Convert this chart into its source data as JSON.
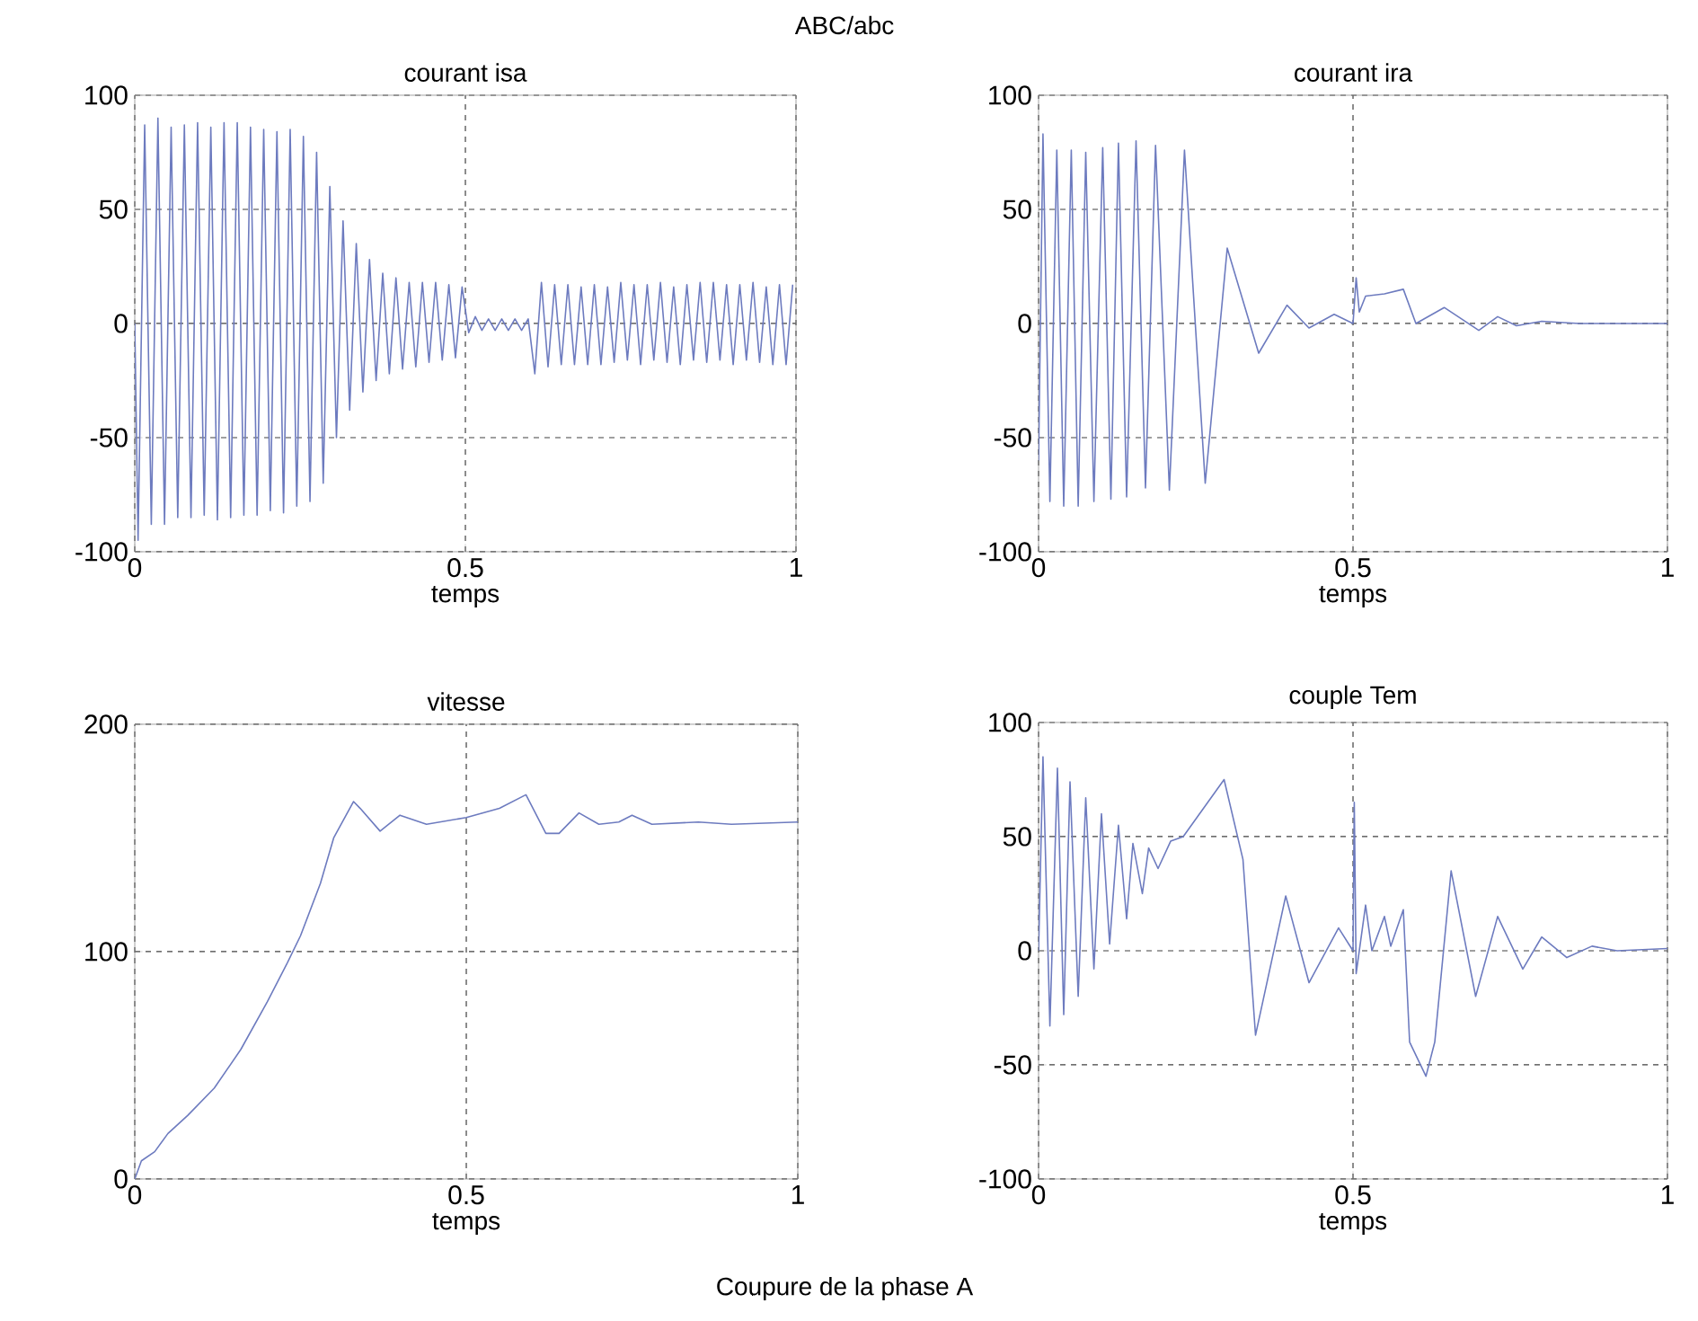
{
  "chart_data": [
    {
      "type": "line",
      "title": "courant isa",
      "xlabel": "temps",
      "annotations": [
        "ABC/abc"
      ],
      "xlim": [
        0,
        1
      ],
      "xticks": [
        0,
        0.5,
        1
      ],
      "ylim": [
        -100,
        100
      ],
      "yticks": [
        -100,
        -50,
        0,
        50,
        100
      ],
      "grid": true,
      "line_style": "solid",
      "x": [
        0,
        0.005,
        0.015,
        0.025,
        0.035,
        0.045,
        0.055,
        0.065,
        0.075,
        0.085,
        0.095,
        0.105,
        0.115,
        0.125,
        0.135,
        0.145,
        0.155,
        0.165,
        0.175,
        0.185,
        0.195,
        0.205,
        0.215,
        0.225,
        0.235,
        0.245,
        0.255,
        0.265,
        0.275,
        0.285,
        0.295,
        0.305,
        0.315,
        0.325,
        0.335,
        0.345,
        0.355,
        0.365,
        0.375,
        0.385,
        0.395,
        0.405,
        0.415,
        0.425,
        0.435,
        0.445,
        0.455,
        0.465,
        0.475,
        0.485,
        0.495,
        0.505,
        0.515,
        0.525,
        0.535,
        0.545,
        0.555,
        0.565,
        0.575,
        0.585,
        0.595,
        0.605,
        0.615,
        0.625,
        0.635,
        0.645,
        0.655,
        0.665,
        0.675,
        0.685,
        0.695,
        0.705,
        0.715,
        0.725,
        0.735,
        0.745,
        0.755,
        0.765,
        0.775,
        0.785,
        0.795,
        0.805,
        0.815,
        0.825,
        0.835,
        0.845,
        0.855,
        0.865,
        0.875,
        0.885,
        0.895,
        0.905,
        0.915,
        0.925,
        0.935,
        0.945,
        0.955,
        0.965,
        0.975,
        0.985,
        0.995
      ],
      "series": [
        {
          "color": "#6d7bbf",
          "values": [
            0,
            -95,
            87,
            -88,
            90,
            -88,
            86,
            -85,
            87,
            -85,
            88,
            -84,
            86,
            -86,
            88,
            -85,
            88,
            -84,
            86,
            -84,
            85,
            -82,
            84,
            -83,
            85,
            -80,
            82,
            -78,
            75,
            -70,
            60,
            -50,
            45,
            -38,
            35,
            -30,
            28,
            -25,
            22,
            -22,
            20,
            -20,
            18,
            -19,
            18,
            -17,
            18,
            -16,
            17,
            -15,
            16,
            -4,
            3,
            -3,
            2,
            -3,
            2,
            -3,
            2,
            -3,
            2,
            -22,
            18,
            -19,
            17,
            -18,
            17,
            -18,
            16,
            -18,
            17,
            -18,
            16,
            -17,
            18,
            -16,
            17,
            -18,
            17,
            -16,
            18,
            -17,
            16,
            -18,
            17,
            -16,
            18,
            -17,
            18,
            -16,
            17,
            -18,
            17,
            -16,
            18,
            -17,
            16,
            -18,
            17,
            -18,
            17
          ]
        }
      ]
    },
    {
      "type": "line",
      "title": "courant ira",
      "xlabel": "temps",
      "xlim": [
        0,
        1
      ],
      "xticks": [
        0,
        0.5,
        1
      ],
      "ylim": [
        -100,
        100
      ],
      "yticks": [
        -100,
        -50,
        0,
        50,
        100
      ],
      "grid": true,
      "line_style": "solid",
      "x": [
        0,
        0.007,
        0.018,
        0.029,
        0.04,
        0.052,
        0.063,
        0.075,
        0.088,
        0.102,
        0.115,
        0.127,
        0.14,
        0.155,
        0.17,
        0.186,
        0.208,
        0.232,
        0.265,
        0.3,
        0.35,
        0.395,
        0.43,
        0.47,
        0.5,
        0.505,
        0.51,
        0.52,
        0.55,
        0.58,
        0.6,
        0.645,
        0.7,
        0.73,
        0.76,
        0.8,
        0.86,
        1
      ],
      "series": [
        {
          "color": "#6d7bbf",
          "values": [
            -60,
            83,
            -78,
            76,
            -80,
            76,
            -80,
            75,
            -78,
            77,
            -77,
            79,
            -76,
            80,
            -72,
            78,
            -73,
            76,
            -70,
            33,
            -13,
            8,
            -2,
            4,
            0,
            20,
            5,
            12,
            13,
            15,
            0,
            7,
            -3,
            3,
            -1,
            1,
            0,
            0
          ]
        }
      ]
    },
    {
      "type": "line",
      "title": "vitesse",
      "xlabel": "temps",
      "annotations": [
        "Coupure de la phase A"
      ],
      "xlim": [
        0,
        1
      ],
      "xticks": [
        0,
        0.5,
        1
      ],
      "ylim": [
        0,
        200
      ],
      "yticks": [
        0,
        100,
        200
      ],
      "grid": true,
      "line_style": "solid",
      "x": [
        0,
        0.01,
        0.03,
        0.05,
        0.08,
        0.12,
        0.16,
        0.2,
        0.23,
        0.25,
        0.28,
        0.3,
        0.33,
        0.34,
        0.37,
        0.4,
        0.42,
        0.44,
        0.5,
        0.55,
        0.59,
        0.62,
        0.64,
        0.67,
        0.7,
        0.73,
        0.75,
        0.78,
        0.85,
        0.9,
        1
      ],
      "series": [
        {
          "color": "#6d7bbf",
          "values": [
            0,
            8,
            12,
            20,
            28,
            40,
            57,
            78,
            95,
            107,
            130,
            150,
            166,
            163,
            153,
            160,
            158,
            156,
            159,
            163,
            169,
            152,
            152,
            161,
            156,
            157,
            160,
            156,
            157,
            156,
            157
          ]
        }
      ]
    },
    {
      "type": "line",
      "title": "couple Tem",
      "xlabel": "temps",
      "xlim": [
        0,
        1
      ],
      "xticks": [
        0,
        0.5,
        1
      ],
      "ylim": [
        -100,
        100
      ],
      "yticks": [
        -100,
        -50,
        0,
        50,
        100
      ],
      "grid": true,
      "line_style": "solid",
      "x": [
        0,
        0.007,
        0.018,
        0.03,
        0.04,
        0.05,
        0.063,
        0.075,
        0.088,
        0.1,
        0.113,
        0.127,
        0.14,
        0.15,
        0.165,
        0.175,
        0.19,
        0.21,
        0.23,
        0.295,
        0.325,
        0.345,
        0.393,
        0.43,
        0.477,
        0.5,
        0.502,
        0.505,
        0.52,
        0.53,
        0.55,
        0.56,
        0.58,
        0.59,
        0.616,
        0.63,
        0.656,
        0.695,
        0.73,
        0.77,
        0.8,
        0.84,
        0.88,
        0.92,
        1
      ],
      "series": [
        {
          "color": "#6d7bbf",
          "values": [
            0,
            85,
            -33,
            80,
            -28,
            74,
            -20,
            67,
            -8,
            60,
            3,
            55,
            14,
            47,
            25,
            45,
            36,
            48,
            50,
            75,
            40,
            -37,
            24,
            -14,
            10,
            0,
            65,
            -10,
            20,
            0,
            15,
            2,
            18,
            -40,
            -55,
            -40,
            35,
            -20,
            15,
            -8,
            6,
            -3,
            2,
            0,
            1
          ]
        }
      ]
    }
  ]
}
